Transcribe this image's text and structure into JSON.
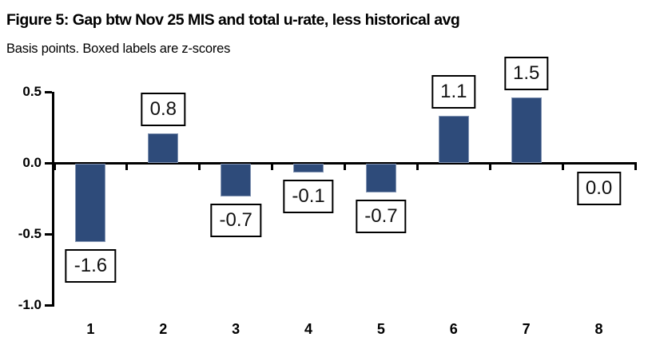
{
  "header": {
    "title": "Figure 5: Gap btw Nov 25 MIS and total u-rate, less historical avg",
    "subtitle": "Basis points. Boxed labels are z-scores"
  },
  "colors": {
    "bar_fill": "#2e4b7a",
    "bar_edge": "#8496b4",
    "axis": "#000000",
    "box_border": "#000000",
    "box_bg": "#ffffff"
  },
  "chart_data": {
    "type": "bar",
    "title": "Figure 5: Gap btw Nov 25 MIS and total u-rate, less historical avg",
    "subtitle": "Basis points. Boxed labels are z-scores",
    "categories": [
      "1",
      "2",
      "3",
      "4",
      "5",
      "6",
      "7",
      "8"
    ],
    "values": [
      -0.55,
      0.21,
      -0.23,
      -0.06,
      -0.2,
      0.33,
      0.46,
      0.0
    ],
    "box_labels": [
      "-1.6",
      "0.8",
      "-0.7",
      "-0.1",
      "-0.7",
      "1.1",
      "1.5",
      "0.0"
    ],
    "box_labels_meaning": "z-scores",
    "xlabel": "",
    "ylabel": "",
    "ylim": [
      -1.0,
      0.5
    ],
    "yticks": [
      0.5,
      0.0,
      -0.5,
      -1.0
    ],
    "ytick_labels": [
      "0.5",
      "0.0",
      "-0.5",
      "-1.0"
    ],
    "grid": false,
    "legend": false
  }
}
